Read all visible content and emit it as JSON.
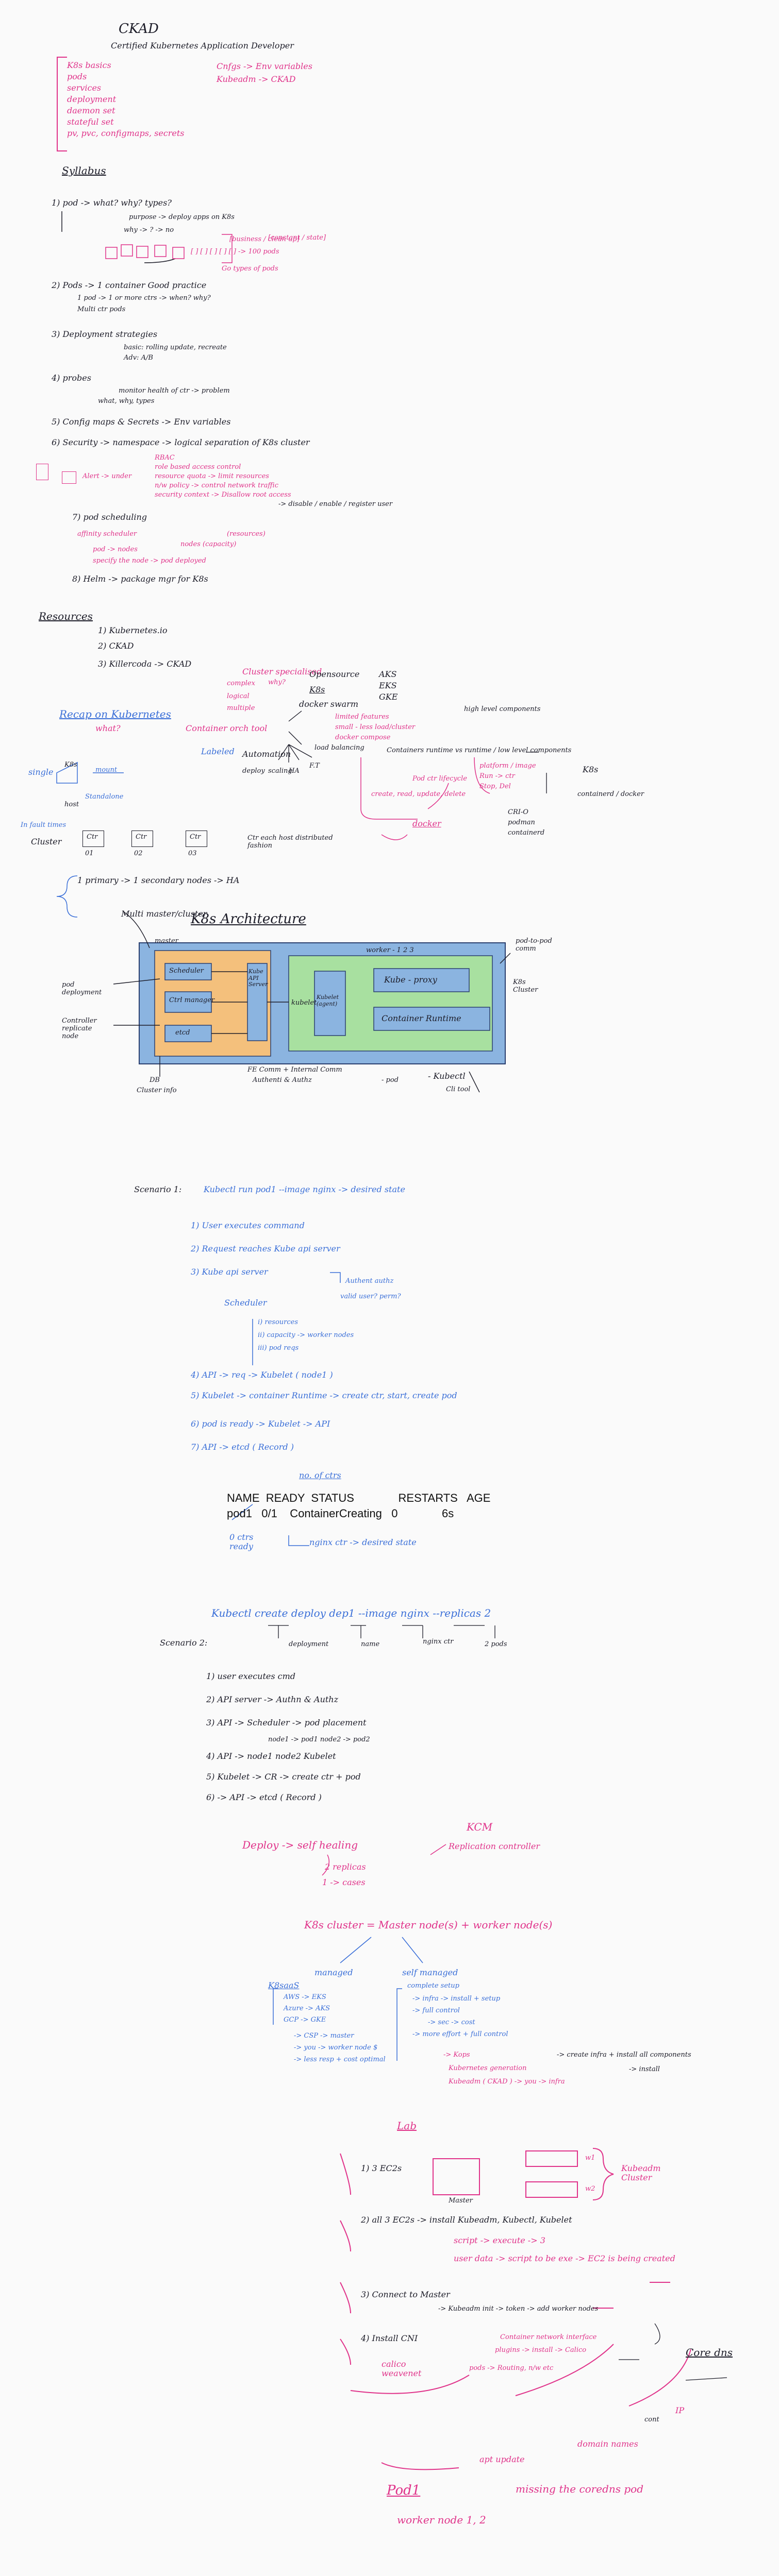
{
  "header": {
    "title": "CKAD",
    "subtitle": "Certified Kubernetes Application Developer"
  },
  "topics": [
    "K8s basics",
    "pods",
    "services",
    "deployment",
    "daemon set",
    "stateful set",
    "pv, pvc, configmaps, secrets"
  ],
  "topic_notes": [
    "Cnfgs -> Env variables",
    "Kubeadm -> CKAD"
  ],
  "syllabus": {
    "heading": "Syllabus",
    "i1": "1)   pod -> what? why? types?",
    "i1a": "purpose -> deploy apps on K8s",
    "i1b": "why -> ? -> no",
    "i1c": "[ ] [ ] [ ]   [ ] [ ]  -> 100 pods",
    "i1d": "[business / clean up]",
    "i1e": "[constant / state]",
    "i1f": "Go types of pods",
    "i2": "2)   Pods -> 1 container    Good practice",
    "i2a": "1 pod -> 1 or more ctrs -> when? why?",
    "i2b": "Multi ctr pods",
    "i3": "3)   Deployment strategies",
    "i3a": "basic: rolling update, recreate",
    "i3b": "Adv: A/B",
    "i4": "4)   probes",
    "i4a": "monitor health of ctr -> problem",
    "i4b": "what, why, types",
    "i5": "5)   Config maps & Secrets -> Env variables",
    "i6": "6)   Security -> namespace -> logical separation of K8s cluster",
    "i6a": "RBAC",
    "i6b": "role based access control",
    "i6c": "resource quota -> limit resources",
    "i6d": "n/w policy -> control network traffic",
    "i6e": "security context -> Disallow root access",
    "i6f": "-> disable / enable / register user",
    "i6g": "Alert -> under",
    "i7": "7)   pod scheduling",
    "i7a": "affinity   scheduler",
    "i7b": "pod -> nodes",
    "i7c": "specify the node -> pod deployed",
    "i7d": "nodes (capacity)",
    "i7e": "(resources)",
    "i8": "8)   Helm -> package mgr for K8s"
  },
  "resources": {
    "heading": "Resources",
    "items": [
      "1) Kubernetes.io",
      "2) CKAD",
      "3) Killercoda -> CKAD"
    ]
  },
  "recap": {
    "heading": "Recap on Kubernetes",
    "what": "what?",
    "cluster_pink": "Cluster specialised",
    "words": [
      "complex",
      "why?",
      "logical",
      "multiple",
      "Opensource",
      "K8s",
      "docker swarm"
    ],
    "platforms": [
      "AKS",
      "EKS",
      "GKE"
    ],
    "limited": "limited features",
    "small": "small - less load/cluster",
    "docker_compose": "docker compose",
    "container_tool": "Container orch tool",
    "labeled": "Labeled",
    "automation": "Automation",
    "auto_items": [
      "deploy",
      "scaling",
      "HA",
      "F.T",
      "load balancing"
    ],
    "high_level": "high level components",
    "containers_vs": "Containers runtime vs  runtime / low level components",
    "pods_list": [
      "Pod ctr lifecycle",
      "Run -> ctr",
      "Stop, Del",
      "platform / image"
    ],
    "crud": "create, read, update, delete",
    "docker": "docker",
    "cri_o": "CRI-O",
    "podman": "podman",
    "containerd": "containerd",
    "k8s_label": "K8s",
    "containerd2": "containerd / docker",
    "single": "single",
    "kube": "K8s",
    "mount": "mount",
    "standalone": "Standalone",
    "host": "host",
    "failed": "In fault times",
    "cluster": "Cluster",
    "node_labels": [
      "Ctr",
      "Ctr",
      "Ctr"
    ],
    "node_names": [
      "01",
      "02",
      "03"
    ],
    "ctr_note": "Ctr each host distributed fashion",
    "primary": "1 primary -> 1 secondary nodes -> HA"
  },
  "architecture": {
    "title": "K8s Architecture",
    "multi_master": "Multi master/cluster",
    "master": "master",
    "worker_label": "worker - 1 2 3",
    "scheduler": "Scheduler",
    "controller": "Ctrl manager",
    "etcd": "etcd",
    "api": "Kube API Server",
    "kubelet": "kubelet",
    "kubelet_agent": "Kubelet (agent)",
    "kube_proxy": "Kube - proxy",
    "container_runtime": "Container Runtime",
    "pod_deployment": "pod deployment",
    "controller_cluster": "Controller replicate node",
    "db": "DB",
    "cluster_info": "Cluster info",
    "fe": "FE Comm + Internal Comm",
    "auth": "Authenti & Authz",
    "pod": "- pod",
    "pod_comm": "pod-to-pod comm",
    "k8s_cluster": "K8s Cluster",
    "kubectl": "- Kubectl",
    "cli": "Cli tool"
  },
  "scenario1": {
    "title": "Scenario 1:",
    "cmd": "Kubectl run pod1 --image nginx -> desired state",
    "steps": [
      "1)   User executes command",
      "2)   Request reaches Kube api server",
      "3)   Kube api server",
      "4)   API -> req -> Kubelet ( node1 )",
      "5)   Kubelet -> container Runtime -> create ctr, start, create pod",
      "6)   pod is ready -> Kubelet -> API",
      "7)   API -> etcd ( Record )"
    ],
    "auth": "Authent authz",
    "valid": "valid user?   perm?",
    "scheduler": "Scheduler",
    "sched_items": [
      "i) resources",
      "ii) capacity -> worker nodes",
      "iii) pod reqs"
    ],
    "no_of_ctrs": "no. of ctrs",
    "table_header": "NAME  READY  STATUS              RESTARTS   AGE",
    "table_row": "pod1   0/1    ContainerCreating   0              6s",
    "nginx_note": "nginx ctr -> desired state",
    "zero_ctrs": "0 ctrs ready"
  },
  "scenario2": {
    "cmd": "Kubectl create deploy dep1 --image nginx --replicas 2",
    "labels": [
      "deployment",
      "name",
      "nginx ctr",
      "2 pods"
    ],
    "title": "Scenario 2:",
    "steps": [
      "1)   user executes cmd",
      "2)   API server -> Authn & Authz",
      "3)   API -> Scheduler -> pod placement",
      "node1 -> pod1    node2 -> pod2",
      "4)   API -> node1 node2 Kubelet",
      "5)   Kubelet -> CR -> create ctr + pod",
      "6)   -> API -> etcd ( Record )"
    ],
    "deploy": "Deploy -> self healing",
    "replicas": "2 replicas",
    "cases": "1 -> cases",
    "kcm": "KCM",
    "replication": "Replication controller"
  },
  "cluster_types": {
    "title": "K8s cluster = Master node(s) + worker node(s)",
    "managed": "managed",
    "self_managed": "self managed",
    "k8saas": "K8saaS",
    "providers": [
      "AWS -> EKS",
      "Azure -> AKS",
      "GCP -> GKE"
    ],
    "csp": "-> CSP -> master",
    "you": "-> you -> worker node $",
    "less": "-> less resp + cost optimal",
    "complete": "complete setup",
    "install": "-> infra -> install + setup",
    "full": "-> full control",
    "sec": "-> sec  -> cost",
    "more": "-> more effort + full control",
    "kops": "-> Kops",
    "kops_note": "-> create infra + install all components",
    "kubeadm": "Kubernetes generation",
    "kubeadm2": "Kubeadm ( CKAD ) -> you -> infra",
    "install_note": "-> install"
  },
  "lab": {
    "heading": "Lab",
    "step1": "1)   3 EC2s",
    "master": "Master",
    "kubeadm_cluster": "Kubeadm Cluster",
    "w1": "w1",
    "w2": "w2",
    "step2": "2)   all 3 EC2s -> install Kubeadm, Kubectl, Kubelet",
    "script": "script -> execute -> 3",
    "userdata": "user data -> script to be exe -> EC2 is being created",
    "step3": "3)   Connect to Master",
    "kubeadm_init": "-> Kubeadm init -> token -> add worker nodes",
    "step4": "4)   Install   CNI",
    "cni_note": "Container network interface",
    "plugins": "plugins -> install -> Calico",
    "core_dns": "Core dns",
    "calico": "calico weavenet",
    "pods_note": "pods -> Routing, n/w etc",
    "cont": "cont",
    "ip": "IP",
    "apt": "apt update",
    "domain": "domain names",
    "pod1": "Pod1",
    "missing": "missing the coredns pod",
    "worker_nodes": "worker node 1, 2"
  }
}
